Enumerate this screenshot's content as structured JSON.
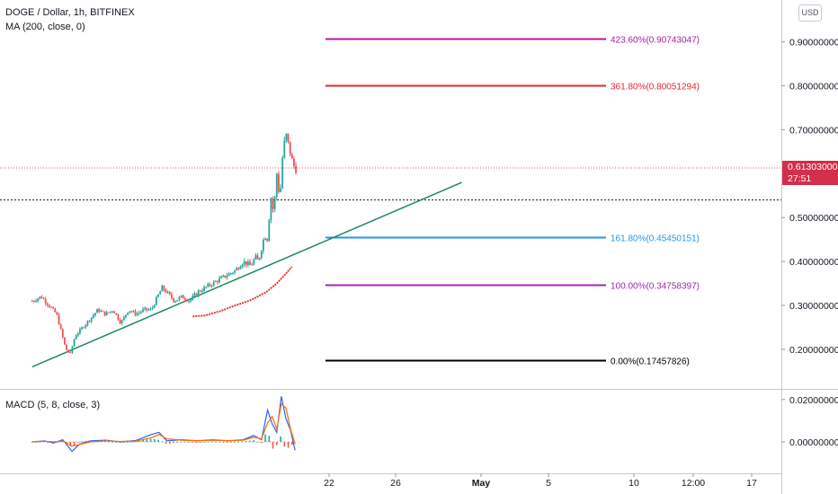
{
  "header": {
    "symbol_line": "DOGE / Dollar, 1h, BITFINEX",
    "indicator_line": "MA (200, close, 0)",
    "macd_label": "MACD (5, 8, close, 3)",
    "currency_button": "USD"
  },
  "last_price": {
    "value": "0.61303000",
    "countdown": "27:51",
    "color": "#d32f4a"
  },
  "colors": {
    "up_candle": "#26a69a",
    "down_candle": "#ef5350",
    "ma_line": "#e53935",
    "trendline": "#1b8a5a",
    "macd_line": "#2962ff",
    "signal_line": "#ff6d00"
  },
  "chart_data": [
    {
      "type": "line",
      "title": "DOGE / Dollar, 1h, BITFINEX",
      "x_tick_labels": [
        "22",
        "26",
        "May",
        "5",
        "10",
        "12:00",
        "17"
      ],
      "y_tick_labels": [
        "0.90000000",
        "0.80000000",
        "0.70000000",
        "0.50000000",
        "0.40000000",
        "0.30000000",
        "0.20000000"
      ],
      "ylim": [
        0.1,
        0.98
      ],
      "xlim_days": [
        20.0,
        48.8
      ],
      "price_path": {
        "x_day": [
          20.2,
          20.8,
          21.3,
          21.8,
          22.1,
          22.4,
          22.7,
          23.0,
          23.5,
          24.0,
          24.5,
          25.0,
          25.5,
          26.0,
          26.5,
          27.0,
          27.5,
          28.0,
          28.4,
          28.7,
          29.0,
          29.5,
          30.0,
          30.5,
          31.0,
          31.5,
          32.0,
          32.5,
          33.0,
          33.5,
          34.0,
          34.5,
          34.8,
          35.0,
          35.2,
          35.4,
          35.6,
          35.8,
          36.0,
          36.2,
          36.4,
          36.6,
          36.8,
          37.0,
          37.2,
          37.4,
          37.5
        ],
        "close": [
          0.31,
          0.32,
          0.3,
          0.28,
          0.24,
          0.2,
          0.19,
          0.23,
          0.25,
          0.27,
          0.29,
          0.28,
          0.29,
          0.26,
          0.29,
          0.28,
          0.29,
          0.29,
          0.32,
          0.34,
          0.33,
          0.31,
          0.32,
          0.31,
          0.33,
          0.34,
          0.35,
          0.36,
          0.37,
          0.38,
          0.4,
          0.39,
          0.41,
          0.4,
          0.43,
          0.46,
          0.45,
          0.55,
          0.51,
          0.6,
          0.54,
          0.65,
          0.69,
          0.66,
          0.63,
          0.61,
          0.613
        ]
      },
      "moving_average": {
        "name": "MA (200, close, 0)",
        "x_day": [
          30.7,
          31.5,
          32.5,
          33.5,
          34.5,
          35.5,
          36.2,
          37.2
        ],
        "y": [
          0.275,
          0.277,
          0.287,
          0.3,
          0.312,
          0.33,
          0.35,
          0.388
        ]
      },
      "trendline": {
        "x_day": [
          20.2,
          48.3
        ],
        "y": [
          0.16,
          0.58
        ]
      },
      "fibonacci_levels": [
        {
          "label": "423.60%(0.90743047)",
          "value": 0.90743047,
          "color": "#b0199f"
        },
        {
          "label": "361.80%(0.80051294)",
          "value": 0.80051294,
          "color": "#e5262e"
        },
        {
          "label": "161.80%(0.45450151)",
          "value": 0.45450151,
          "color": "#2196f3"
        },
        {
          "label": "100.00%(0.34758397)",
          "value": 0.34758397,
          "color": "#9c27b0"
        },
        {
          "label": "0.00%(0.17457826)",
          "value": 0.17457826,
          "color": "#000000"
        }
      ],
      "fib_x_range_days": [
        20.1,
        33.6
      ],
      "last_price_line": 0.61303,
      "prev_close_line": 0.54
    },
    {
      "type": "line",
      "title": "MACD (5, 8, close, 3)",
      "y_tick_labels": [
        "0.02000000",
        "0.00000000"
      ],
      "ylim": [
        -0.007,
        0.024
      ],
      "x_day": [
        20.2,
        21.0,
        21.6,
        22.2,
        22.8,
        23.3,
        24.0,
        25.0,
        26.0,
        27.0,
        28.0,
        28.5,
        29.0,
        30.0,
        31.0,
        32.0,
        33.0,
        34.0,
        34.7,
        35.2,
        35.6,
        35.9,
        36.2,
        36.5,
        36.8,
        37.1,
        37.4
      ],
      "macd": [
        0.0,
        0.0005,
        -0.0005,
        0.001,
        -0.0045,
        -0.001,
        0.0005,
        0.0008,
        0.0,
        0.0007,
        0.0035,
        0.0045,
        0.0005,
        0.001,
        0.0005,
        0.001,
        0.0005,
        0.001,
        0.003,
        0.001,
        0.015,
        0.0085,
        0.0045,
        0.0215,
        0.011,
        0.0055,
        -0.004
      ],
      "signal": [
        0.0,
        0.0003,
        0.0,
        0.0004,
        -0.002,
        -0.0012,
        0.0,
        0.0005,
        0.0002,
        0.0004,
        0.002,
        0.0035,
        0.0015,
        0.0008,
        0.0006,
        0.0008,
        0.0006,
        0.0008,
        0.0022,
        0.0015,
        0.009,
        0.012,
        0.006,
        0.018,
        0.016,
        0.006,
        -0.001
      ]
    }
  ]
}
